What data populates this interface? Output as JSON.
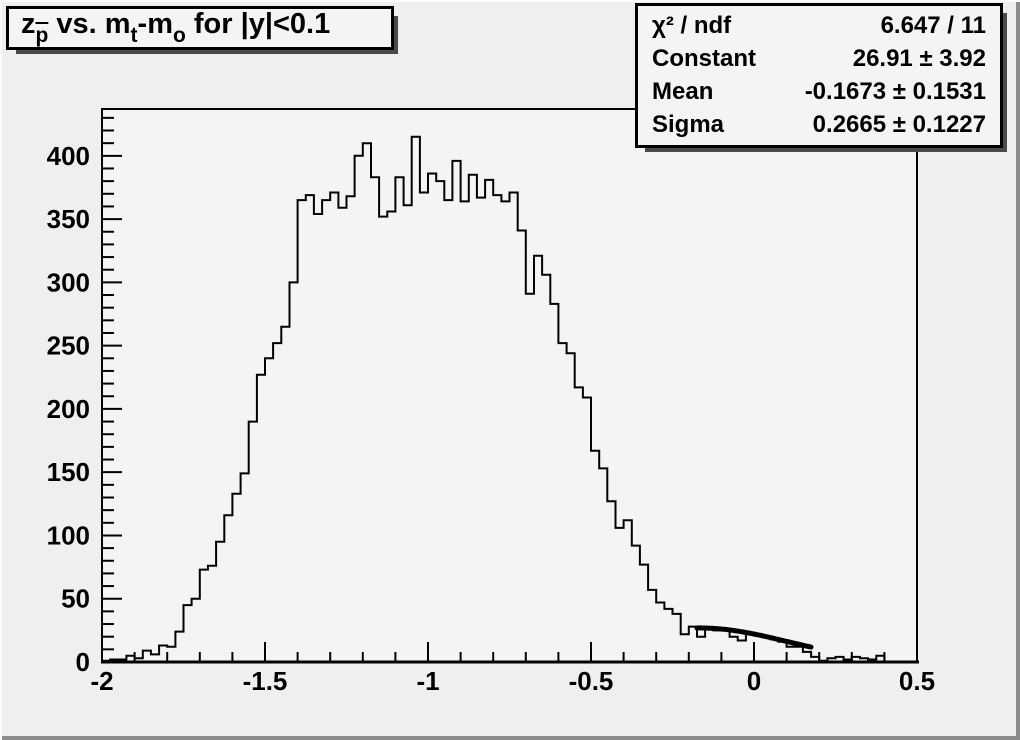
{
  "title": {
    "full": "z_p̄ vs. m_t-m_o for |y|<0.1",
    "segments": {
      "z": "z",
      "pbar": "p",
      "vs_m": " vs. m",
      "t": "t",
      "minus_m": "-m",
      "o": "o",
      "rest": " for |y|<0.1"
    }
  },
  "stats": {
    "rows": [
      {
        "label": "χ² / ndf",
        "value": "6.647 / 11"
      },
      {
        "label": "Constant",
        "value": "26.91 ± 3.92"
      },
      {
        "label": "Mean",
        "value": "-0.1673 ± 0.1531"
      },
      {
        "label": "Sigma",
        "value": "0.2665 ± 0.1227"
      }
    ]
  },
  "chart_data": {
    "type": "bar",
    "style": "step-outline histogram (ROOT TH1 with Gaussian fit)",
    "title": "z_p̄ vs. m_t-m_o for |y|<0.1",
    "xlabel": "",
    "ylabel": "",
    "xlim": [
      -2,
      0.5
    ],
    "ylim": [
      0,
      437
    ],
    "grid": false,
    "legend": false,
    "x_major_ticks": [
      -2,
      -1.5,
      -1,
      -0.5,
      0,
      0.5
    ],
    "x_tick_labels": [
      "-2",
      "-1.5",
      "-1",
      "-0.5",
      "0",
      "0.5"
    ],
    "x_minor_step": 0.1,
    "y_major_ticks": [
      0,
      50,
      100,
      150,
      200,
      250,
      300,
      350,
      400
    ],
    "y_tick_labels": [
      "0",
      "50",
      "100",
      "150",
      "200",
      "250",
      "300",
      "350",
      "400"
    ],
    "y_minor_step": 10,
    "bins": {
      "start": -2,
      "width": 0.025,
      "values": [
        1,
        2,
        2,
        5,
        3,
        9,
        6,
        13,
        12,
        24,
        45,
        50,
        73,
        76,
        95,
        116,
        133,
        149,
        190,
        227,
        240,
        252,
        265,
        300,
        365,
        369,
        354,
        365,
        371,
        359,
        368,
        400,
        410,
        383,
        352,
        356,
        383,
        361,
        415,
        371,
        386,
        380,
        365,
        396,
        364,
        385,
        367,
        381,
        369,
        364,
        371,
        341,
        291,
        321,
        306,
        283,
        252,
        244,
        217,
        209,
        167,
        153,
        127,
        106,
        112,
        92,
        77,
        57,
        47,
        42,
        38,
        22,
        28,
        20,
        26,
        25,
        25,
        20,
        17,
        22,
        22,
        20,
        18,
        16,
        12,
        12,
        8,
        4,
        1,
        3,
        4,
        2,
        4,
        3,
        2,
        5,
        0,
        0,
        0,
        0
      ]
    },
    "fit": {
      "model": "gaussian",
      "constant": 26.91,
      "constant_err": 3.92,
      "mean": -0.1673,
      "mean_err": 0.1531,
      "sigma": 0.2665,
      "sigma_err": 0.1227,
      "chi2": 6.647,
      "ndf": 11,
      "range": [
        -0.175,
        0.175
      ]
    },
    "colors": {
      "line": "#000000",
      "fit": "#000000",
      "frame_bg": "#f4f4f4",
      "canvas_bg": "#efefef",
      "text": "#000000"
    }
  }
}
